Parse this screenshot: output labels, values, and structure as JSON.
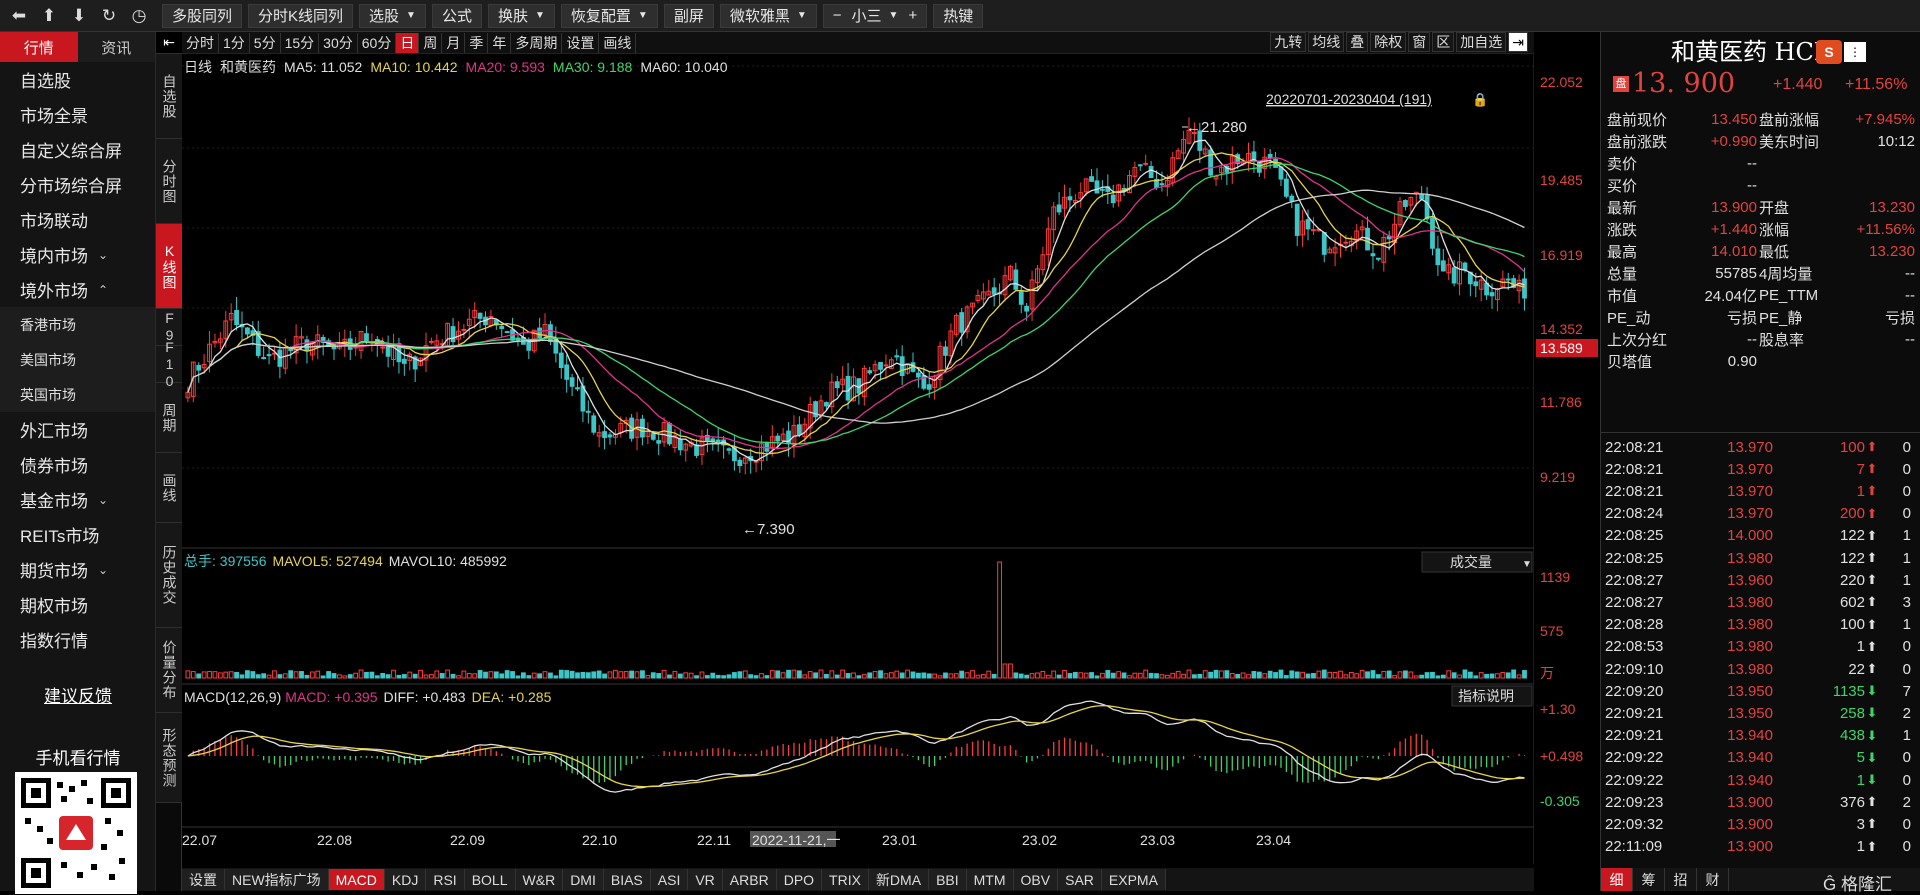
{
  "toolbar": {
    "buttons": [
      "多股同列",
      "分时K线同列",
      "选股",
      "公式",
      "换肤",
      "恢复配置",
      "副屏",
      "微软雅黑",
      "小三",
      "热键"
    ],
    "dropdowns": [
      false,
      false,
      true,
      false,
      true,
      true,
      false,
      true,
      false,
      false
    ],
    "icons": [
      "back-icon",
      "up-icon",
      "down-icon",
      "refresh-icon",
      "clock-icon"
    ]
  },
  "leftnav": {
    "tabs": [
      "行情",
      "资讯"
    ],
    "items": [
      {
        "label": "自选股",
        "chev": ""
      },
      {
        "label": "市场全景",
        "chev": ""
      },
      {
        "label": "自定义综合屏",
        "chev": ""
      },
      {
        "label": "分市场综合屏",
        "chev": ""
      },
      {
        "label": "市场联动",
        "chev": ""
      },
      {
        "label": "境内市场",
        "chev": "⌄"
      },
      {
        "label": "境外市场",
        "chev": "⌃"
      }
    ],
    "subitems": [
      "香港市场",
      "美国市场",
      "英国市场"
    ],
    "items2": [
      {
        "label": "外汇市场",
        "chev": ""
      },
      {
        "label": "债券市场",
        "chev": ""
      },
      {
        "label": "基金市场",
        "chev": "⌄"
      },
      {
        "label": "REITs市场",
        "chev": ""
      },
      {
        "label": "期货市场",
        "chev": "⌄"
      },
      {
        "label": "期权市场",
        "chev": ""
      },
      {
        "label": "指数行情",
        "chev": ""
      }
    ],
    "feedback": "建议反馈",
    "mobile": "手机看行情"
  },
  "sidetabs": [
    "自选股",
    "分时图",
    "K线图",
    "F9",
    "F10",
    "周期",
    "画线",
    "历史成交",
    "价量分布",
    "形态预测"
  ],
  "periodbar": {
    "items": [
      "分时",
      "1分",
      "5分",
      "15分",
      "30分",
      "60分",
      "日",
      "周",
      "月",
      "季",
      "年",
      "多周期",
      "设置",
      "画线"
    ],
    "active": "日",
    "right": [
      "九转",
      "均线",
      "叠",
      "除权",
      "窗",
      "区",
      "加自选"
    ]
  },
  "chart": {
    "ma_label": {
      "prefix": "日线",
      "name": "和黄医药",
      "ma5": "MA5: 11.052",
      "ma10": "MA10: 10.442",
      "ma20": "MA20: 9.593",
      "ma30": "MA30: 9.188",
      "ma60": "MA60: 10.040"
    },
    "range_label": "20220701-20230404 (191)",
    "price_axis": [
      "22.052",
      "19.485",
      "16.919",
      "14.352",
      "11.786",
      "9.219"
    ],
    "current_price_tag": "13.589",
    "high_label": "21.280",
    "low_label": "7.390",
    "vol_label": {
      "total": "总手: 397556",
      "mavol5": "MAVOL5: 527494",
      "mavol10": "MAVOL10: 485992"
    },
    "vol_select": "成交量",
    "vol_axis": [
      "1139",
      "575",
      "万"
    ],
    "macd_label": {
      "name": "MACD(12,26,9)",
      "macd": "MACD: +0.395",
      "diff": "DIFF: +0.483",
      "dea": "DEA: +0.285"
    },
    "macd_btn": "指标说明",
    "macd_axis": [
      "+1.30",
      "+0.498",
      "-0.305"
    ],
    "x_axis": [
      "22.07",
      "22.08",
      "22.09",
      "22.10",
      "22.11",
      "2022-11-21,一",
      "23.01",
      "23.02",
      "23.03",
      "23.04"
    ]
  },
  "chart_data": {
    "type": "candlestick",
    "title": "和黄医药 日线",
    "x_range": [
      "2022-07-01",
      "2023-04-04"
    ],
    "ylim": [
      7.39,
      22.052
    ],
    "high": 21.28,
    "low": 7.39,
    "last_close": 13.589,
    "ma": {
      "MA5": 11.052,
      "MA10": 10.442,
      "MA20": 9.593,
      "MA30": 9.188,
      "MA60": 10.04
    },
    "close_by_month": [
      {
        "x": "22.07",
        "close": 11.8
      },
      {
        "x": "22.08",
        "close": 12.6
      },
      {
        "x": "22.09",
        "close": 11.4
      },
      {
        "x": "22.10",
        "close": 8.3
      },
      {
        "x": "22.11",
        "close": 10.6
      },
      {
        "x": "22.12",
        "close": 13.4
      },
      {
        "x": "23.01",
        "close": 17.2
      },
      {
        "x": "23.02",
        "close": 18.0
      },
      {
        "x": "23.03",
        "close": 15.4
      },
      {
        "x": "23.04",
        "close": 13.589
      }
    ]
  },
  "bottombar": [
    "设置",
    "NEW指标广场",
    "MACD",
    "KDJ",
    "RSI",
    "BOLL",
    "W&R",
    "DMI",
    "BIAS",
    "ASI",
    "VR",
    "ARBR",
    "DPO",
    "TRIX",
    "新DMA",
    "BBI",
    "MTM",
    "OBV",
    "SAR",
    "EXPMA"
  ],
  "bottom_active": "MACD",
  "rpanel": {
    "name": "和黄医药 HCM",
    "price": "13. 900",
    "chg": "+1.440",
    "pct": "+11.56%",
    "quotes": [
      [
        "盘前现价",
        "13.450",
        "盘前涨幅",
        "+7.945%"
      ],
      [
        "盘前涨跌",
        "+0.990",
        "美东时间",
        "10:12"
      ],
      [
        "卖价",
        "--",
        "",
        ""
      ],
      [
        "买价",
        "--",
        "",
        ""
      ],
      [
        "最新",
        "13.900",
        "开盘",
        "13.230"
      ],
      [
        "涨跌",
        "+1.440",
        "涨幅",
        "+11.56%"
      ],
      [
        "最高",
        "14.010",
        "最低",
        "13.230"
      ],
      [
        "总量",
        "55785",
        "4周均量",
        "--"
      ],
      [
        "市值",
        "24.04亿",
        "PE_TTM",
        "--"
      ],
      [
        "PE_动",
        "亏损",
        "PE_静",
        "亏损"
      ],
      [
        "上次分红",
        "--",
        "股息率",
        "--"
      ],
      [
        "贝塔值",
        "0.90",
        "",
        ""
      ]
    ],
    "trades": [
      [
        "22:08:21",
        "13.970",
        "100",
        "up",
        "0"
      ],
      [
        "22:08:21",
        "13.970",
        "7",
        "up",
        "0"
      ],
      [
        "22:08:21",
        "13.970",
        "1",
        "up",
        "0"
      ],
      [
        "22:08:24",
        "13.970",
        "200",
        "up",
        "0"
      ],
      [
        "22:08:25",
        "14.000",
        "122",
        "upw",
        "1"
      ],
      [
        "22:08:25",
        "13.980",
        "122",
        "upw",
        "1"
      ],
      [
        "22:08:27",
        "13.960",
        "220",
        "upw",
        "1"
      ],
      [
        "22:08:27",
        "13.980",
        "602",
        "upw",
        "3"
      ],
      [
        "22:08:28",
        "13.980",
        "100",
        "upw",
        "1"
      ],
      [
        "22:08:53",
        "13.980",
        "1",
        "upw",
        "0"
      ],
      [
        "22:09:10",
        "13.980",
        "22",
        "upw",
        "0"
      ],
      [
        "22:09:20",
        "13.950",
        "1135",
        "down",
        "7"
      ],
      [
        "22:09:21",
        "13.950",
        "258",
        "down",
        "2"
      ],
      [
        "22:09:21",
        "13.940",
        "438",
        "down",
        "1"
      ],
      [
        "22:09:22",
        "13.940",
        "5",
        "down",
        "0"
      ],
      [
        "22:09:22",
        "13.940",
        "1",
        "down",
        "0"
      ],
      [
        "22:09:23",
        "13.900",
        "376",
        "upw",
        "2"
      ],
      [
        "22:09:32",
        "13.900",
        "3",
        "upw",
        "0"
      ],
      [
        "22:11:09",
        "13.900",
        "1",
        "upw",
        "0"
      ]
    ],
    "tabs": [
      "细",
      "筹",
      "招",
      "财"
    ],
    "watermark": "格隆汇"
  }
}
